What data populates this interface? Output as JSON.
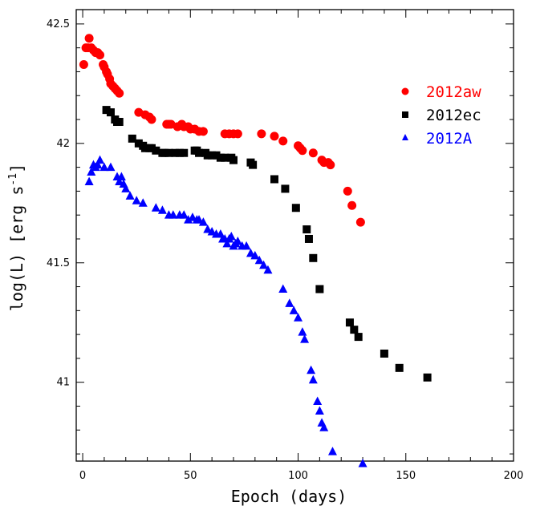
{
  "chart_data": {
    "type": "scatter",
    "xlabel": "Epoch (days)",
    "ylabel": "log(L) [erg s",
    "ylabel_sup": "-1",
    "ylabel_end": "]",
    "xlim": [
      -3,
      200
    ],
    "ylim": [
      40.67,
      42.56
    ],
    "x_ticks": [
      0,
      50,
      100,
      150,
      200
    ],
    "x_tick_labels": [
      "0",
      "50",
      "100",
      "150",
      "200"
    ],
    "y_ticks": [
      41,
      41.5,
      42,
      42.5
    ],
    "y_tick_labels": [
      "41",
      "41.5",
      "42",
      "42.5"
    ],
    "legend_position": "top-right",
    "series": [
      {
        "name": "2012aw",
        "color": "#ff0000",
        "marker": "circle",
        "x": [
          0.5,
          1.5,
          2.5,
          3,
          4,
          5,
          6,
          7,
          8,
          9.5,
          10,
          11,
          11.5,
          12.5,
          13,
          14,
          15,
          16,
          17,
          26,
          29,
          31,
          32,
          39,
          40,
          41,
          44,
          46,
          47,
          49,
          50,
          52,
          54,
          56,
          66,
          68,
          70,
          72,
          83,
          89,
          93,
          100,
          101,
          102,
          107,
          111,
          112,
          114,
          115,
          123,
          125,
          129
        ],
        "y": [
          42.33,
          42.4,
          42.4,
          42.44,
          42.4,
          42.39,
          42.38,
          42.38,
          42.37,
          42.33,
          42.32,
          42.3,
          42.29,
          42.27,
          42.25,
          42.24,
          42.23,
          42.22,
          42.21,
          42.13,
          42.12,
          42.11,
          42.1,
          42.08,
          42.08,
          42.08,
          42.07,
          42.08,
          42.07,
          42.07,
          42.06,
          42.06,
          42.05,
          42.05,
          42.04,
          42.04,
          42.04,
          42.04,
          42.04,
          42.03,
          42.01,
          41.99,
          41.98,
          41.97,
          41.96,
          41.93,
          41.92,
          41.92,
          41.91,
          41.8,
          41.74,
          41.67
        ]
      },
      {
        "name": "2012ec",
        "color": "#000000",
        "marker": "square",
        "x": [
          11,
          13,
          15,
          16,
          17,
          23,
          26,
          28,
          29,
          31,
          32,
          34,
          37,
          38,
          40,
          43,
          45,
          47,
          52,
          53,
          54,
          57,
          58,
          60,
          62,
          64,
          66,
          69,
          70,
          78,
          79,
          89,
          94,
          99,
          104,
          105,
          107,
          110,
          124,
          126,
          128,
          140,
          147,
          160
        ],
        "y": [
          42.14,
          42.13,
          42.1,
          42.09,
          42.09,
          42.02,
          42.0,
          41.99,
          41.98,
          41.98,
          41.98,
          41.97,
          41.96,
          41.96,
          41.96,
          41.96,
          41.96,
          41.96,
          41.97,
          41.97,
          41.96,
          41.96,
          41.95,
          41.95,
          41.95,
          41.94,
          41.94,
          41.94,
          41.93,
          41.92,
          41.91,
          41.85,
          41.81,
          41.73,
          41.64,
          41.6,
          41.52,
          41.39,
          41.25,
          41.22,
          41.19,
          41.12,
          41.06,
          41.02
        ]
      },
      {
        "name": "2012A",
        "color": "#0000ff",
        "marker": "triangle",
        "x": [
          3,
          4,
          5,
          6,
          7,
          8,
          10,
          13,
          16,
          17,
          18,
          19,
          20,
          22,
          25,
          28,
          34,
          37,
          40,
          42,
          45,
          47,
          49,
          51,
          53,
          54,
          56,
          58,
          60,
          62,
          64,
          65,
          66,
          67,
          68,
          69,
          70,
          71,
          72,
          74,
          76,
          78,
          80,
          82,
          84,
          86,
          93,
          96,
          98,
          100,
          102,
          103,
          106,
          107,
          109,
          110,
          111,
          112,
          116,
          130
        ],
        "y": [
          41.84,
          41.88,
          41.91,
          41.9,
          41.91,
          41.93,
          41.9,
          41.9,
          41.86,
          41.84,
          41.86,
          41.83,
          41.81,
          41.78,
          41.76,
          41.75,
          41.73,
          41.72,
          41.7,
          41.7,
          41.7,
          41.7,
          41.68,
          41.69,
          41.68,
          41.68,
          41.67,
          41.64,
          41.63,
          41.62,
          41.62,
          41.6,
          41.6,
          41.58,
          41.6,
          41.61,
          41.57,
          41.58,
          41.59,
          41.57,
          41.57,
          41.54,
          41.53,
          41.51,
          41.49,
          41.47,
          41.39,
          41.33,
          41.3,
          41.27,
          41.21,
          41.18,
          41.05,
          41.01,
          40.92,
          40.88,
          40.83,
          40.81,
          40.71,
          40.66
        ]
      }
    ]
  }
}
